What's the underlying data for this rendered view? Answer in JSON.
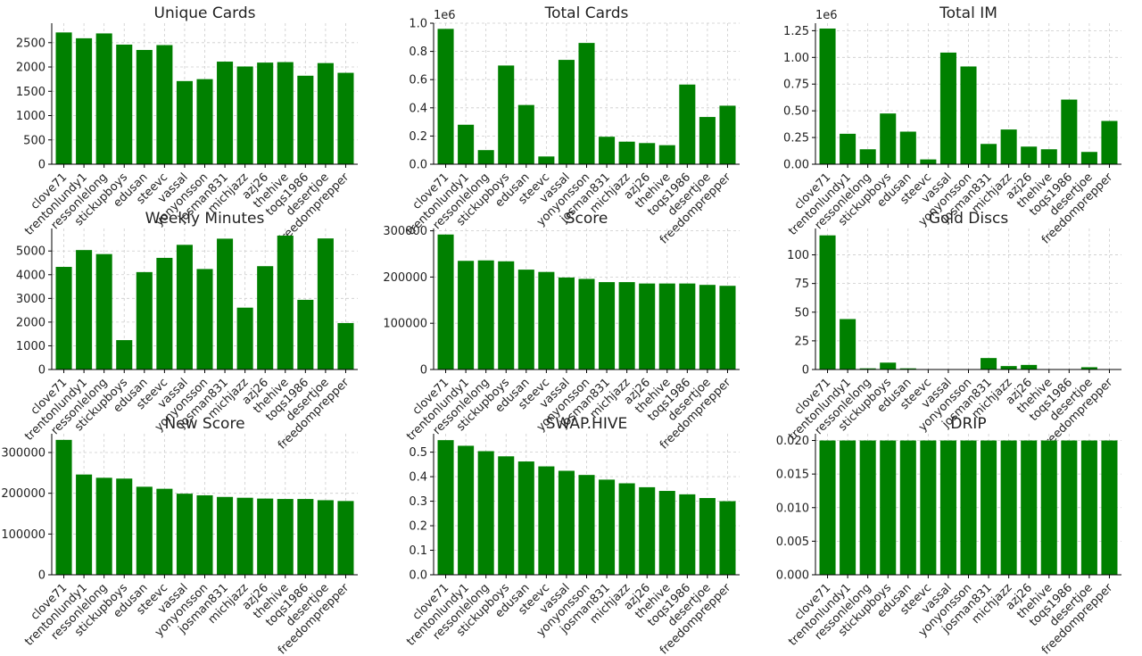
{
  "style": {
    "bar_color": "#008000",
    "axis_color": "#000000",
    "grid_color": "#cccccc",
    "text_color": "#222222"
  },
  "players": [
    "clove71",
    "trentonlundy1",
    "ressonlelong",
    "stickupboys",
    "edusan",
    "steevc",
    "vassal",
    "yonyonsson",
    "josman831",
    "michjazz",
    "azj26",
    "thehive",
    "toqs1986",
    "desertjoe",
    "freedomprepper"
  ],
  "chart_data": [
    {
      "type": "bar",
      "title": "Unique Cards",
      "xlabel": "",
      "ylabel": "",
      "grid": true,
      "ylim": [
        0,
        2900
      ],
      "yticks": [
        0,
        500,
        1000,
        1500,
        2000,
        2500
      ],
      "ytick_labels": [
        "0",
        "500",
        "1000",
        "1500",
        "2000",
        "2500"
      ],
      "offset_label": "",
      "categories": [
        "clove71",
        "trentonlundy1",
        "ressonlelong",
        "stickupboys",
        "edusan",
        "steevc",
        "vassal",
        "yonyonsson",
        "josman831",
        "michjazz",
        "azj26",
        "thehive",
        "toqs1986",
        "desertjoe",
        "freedomprepper"
      ],
      "values": [
        2710,
        2590,
        2690,
        2460,
        2350,
        2450,
        1710,
        1750,
        2110,
        2010,
        2090,
        2100,
        1820,
        2080,
        1880
      ]
    },
    {
      "type": "bar",
      "title": "Total Cards",
      "xlabel": "",
      "ylabel": "",
      "grid": true,
      "ylim": [
        0,
        1000000
      ],
      "yticks": [
        0,
        200000,
        400000,
        600000,
        800000,
        1000000
      ],
      "ytick_labels": [
        "0.0",
        "0.2",
        "0.4",
        "0.6",
        "0.8",
        "1.0"
      ],
      "offset_label": "1e6",
      "categories": [
        "clove71",
        "trentonlundy1",
        "ressonlelong",
        "stickupboys",
        "edusan",
        "steevc",
        "vassal",
        "yonyonsson",
        "josman831",
        "michjazz",
        "azj26",
        "thehive",
        "toqs1986",
        "desertjoe",
        "freedomprepper"
      ],
      "values": [
        960000,
        280000,
        100000,
        700000,
        420000,
        55000,
        740000,
        860000,
        195000,
        160000,
        150000,
        135000,
        565000,
        335000,
        415000
      ]
    },
    {
      "type": "bar",
      "title": "Total IM",
      "xlabel": "",
      "ylabel": "",
      "grid": true,
      "ylim": [
        0,
        1320000
      ],
      "yticks": [
        0,
        250000,
        500000,
        750000,
        1000000,
        1250000
      ],
      "ytick_labels": [
        "0.00",
        "0.25",
        "0.50",
        "0.75",
        "1.00",
        "1.25"
      ],
      "offset_label": "1e6",
      "categories": [
        "clove71",
        "trentonlundy1",
        "ressonlelong",
        "stickupboys",
        "edusan",
        "steevc",
        "vassal",
        "yonyonsson",
        "josman831",
        "michjazz",
        "azj26",
        "thehive",
        "toqs1986",
        "desertjoe",
        "freedomprepper"
      ],
      "values": [
        1270000,
        285000,
        140000,
        475000,
        305000,
        45000,
        1045000,
        915000,
        190000,
        325000,
        165000,
        140000,
        605000,
        115000,
        405000
      ]
    },
    {
      "type": "bar",
      "title": "Weekly Minutes",
      "xlabel": "",
      "ylabel": "",
      "grid": true,
      "ylim": [
        0,
        5950
      ],
      "yticks": [
        0,
        1000,
        2000,
        3000,
        4000,
        5000
      ],
      "ytick_labels": [
        "0",
        "1000",
        "2000",
        "3000",
        "4000",
        "5000"
      ],
      "offset_label": "",
      "categories": [
        "clove71",
        "trentonlundy1",
        "ressonlelong",
        "stickupboys",
        "edusan",
        "steevc",
        "vassal",
        "yonyonsson",
        "josman831",
        "michjazz",
        "azj26",
        "thehive",
        "toqs1986",
        "desertjoe",
        "freedomprepper"
      ],
      "values": [
        4330,
        5040,
        4870,
        1240,
        4110,
        4710,
        5260,
        4240,
        5520,
        2610,
        4360,
        5650,
        2940,
        5530,
        1960
      ]
    },
    {
      "type": "bar",
      "title": "Score",
      "xlabel": "",
      "ylabel": "",
      "grid": true,
      "ylim": [
        0,
        305000
      ],
      "yticks": [
        0,
        100000,
        200000,
        300000
      ],
      "ytick_labels": [
        "0",
        "100000",
        "200000",
        "300000"
      ],
      "offset_label": "",
      "categories": [
        "clove71",
        "trentonlundy1",
        "ressonlelong",
        "stickupboys",
        "edusan",
        "steevc",
        "vassal",
        "yonyonsson",
        "josman831",
        "michjazz",
        "azj26",
        "thehive",
        "toqs1986",
        "desertjoe",
        "freedomprepper"
      ],
      "values": [
        292000,
        235000,
        236000,
        234000,
        216000,
        211000,
        199000,
        196000,
        189000,
        189000,
        186000,
        186000,
        186000,
        183000,
        181000
      ]
    },
    {
      "type": "bar",
      "title": "Gold Discs",
      "xlabel": "",
      "ylabel": "",
      "grid": true,
      "ylim": [
        0,
        123
      ],
      "yticks": [
        0,
        25,
        50,
        75,
        100
      ],
      "ytick_labels": [
        "0",
        "25",
        "50",
        "75",
        "100"
      ],
      "offset_label": "",
      "categories": [
        "clove71",
        "trentonlundy1",
        "ressonlelong",
        "stickupboys",
        "edusan",
        "steevc",
        "vassal",
        "yonyonsson",
        "josman831",
        "michjazz",
        "azj26",
        "thehive",
        "toqs1986",
        "desertjoe",
        "freedomprepper"
      ],
      "values": [
        117,
        44,
        1,
        6,
        1,
        0,
        0,
        0,
        10,
        3,
        4,
        0,
        0,
        2,
        0
      ]
    },
    {
      "type": "bar",
      "title": "New Score",
      "xlabel": "",
      "ylabel": "",
      "grid": true,
      "ylim": [
        0,
        346000
      ],
      "yticks": [
        0,
        100000,
        200000,
        300000
      ],
      "ytick_labels": [
        "0",
        "100000",
        "200000",
        "300000"
      ],
      "offset_label": "",
      "categories": [
        "clove71",
        "trentonlundy1",
        "ressonlelong",
        "stickupboys",
        "edusan",
        "steevc",
        "vassal",
        "yonyonsson",
        "josman831",
        "michjazz",
        "azj26",
        "thehive",
        "toqs1986",
        "desertjoe",
        "freedomprepper"
      ],
      "values": [
        331000,
        246000,
        238000,
        236000,
        216000,
        211000,
        199000,
        195000,
        191000,
        189000,
        187000,
        186000,
        186000,
        183000,
        181000
      ]
    },
    {
      "type": "bar",
      "title": "SWAP.HIVE",
      "xlabel": "",
      "ylabel": "",
      "grid": true,
      "ylim": [
        0,
        0.575
      ],
      "yticks": [
        0,
        0.1,
        0.2,
        0.3,
        0.4,
        0.5
      ],
      "ytick_labels": [
        "0.0",
        "0.1",
        "0.2",
        "0.3",
        "0.4",
        "0.5"
      ],
      "offset_label": "",
      "categories": [
        "clove71",
        "trentonlundy1",
        "ressonlelong",
        "stickupboys",
        "edusan",
        "steevc",
        "vassal",
        "yonyonsson",
        "josman831",
        "michjazz",
        "azj26",
        "thehive",
        "toqs1986",
        "desertjoe",
        "freedomprepper"
      ],
      "values": [
        0.549,
        0.526,
        0.504,
        0.483,
        0.462,
        0.442,
        0.424,
        0.407,
        0.388,
        0.373,
        0.357,
        0.342,
        0.328,
        0.313,
        0.3
      ]
    },
    {
      "type": "bar",
      "title": "DRIP",
      "xlabel": "",
      "ylabel": "",
      "grid": true,
      "ylim": [
        0,
        0.021
      ],
      "yticks": [
        0,
        0.005,
        0.01,
        0.015,
        0.02
      ],
      "ytick_labels": [
        "0.000",
        "0.005",
        "0.010",
        "0.015",
        "0.020"
      ],
      "offset_label": "",
      "categories": [
        "clove71",
        "trentonlundy1",
        "ressonlelong",
        "stickupboys",
        "edusan",
        "steevc",
        "vassal",
        "yonyonsson",
        "josman831",
        "michjazz",
        "azj26",
        "thehive",
        "toqs1986",
        "desertjoe",
        "freedomprepper"
      ],
      "values": [
        0.02,
        0.02,
        0.02,
        0.02,
        0.02,
        0.02,
        0.02,
        0.02,
        0.02,
        0.02,
        0.02,
        0.02,
        0.02,
        0.02,
        0.02
      ]
    }
  ]
}
